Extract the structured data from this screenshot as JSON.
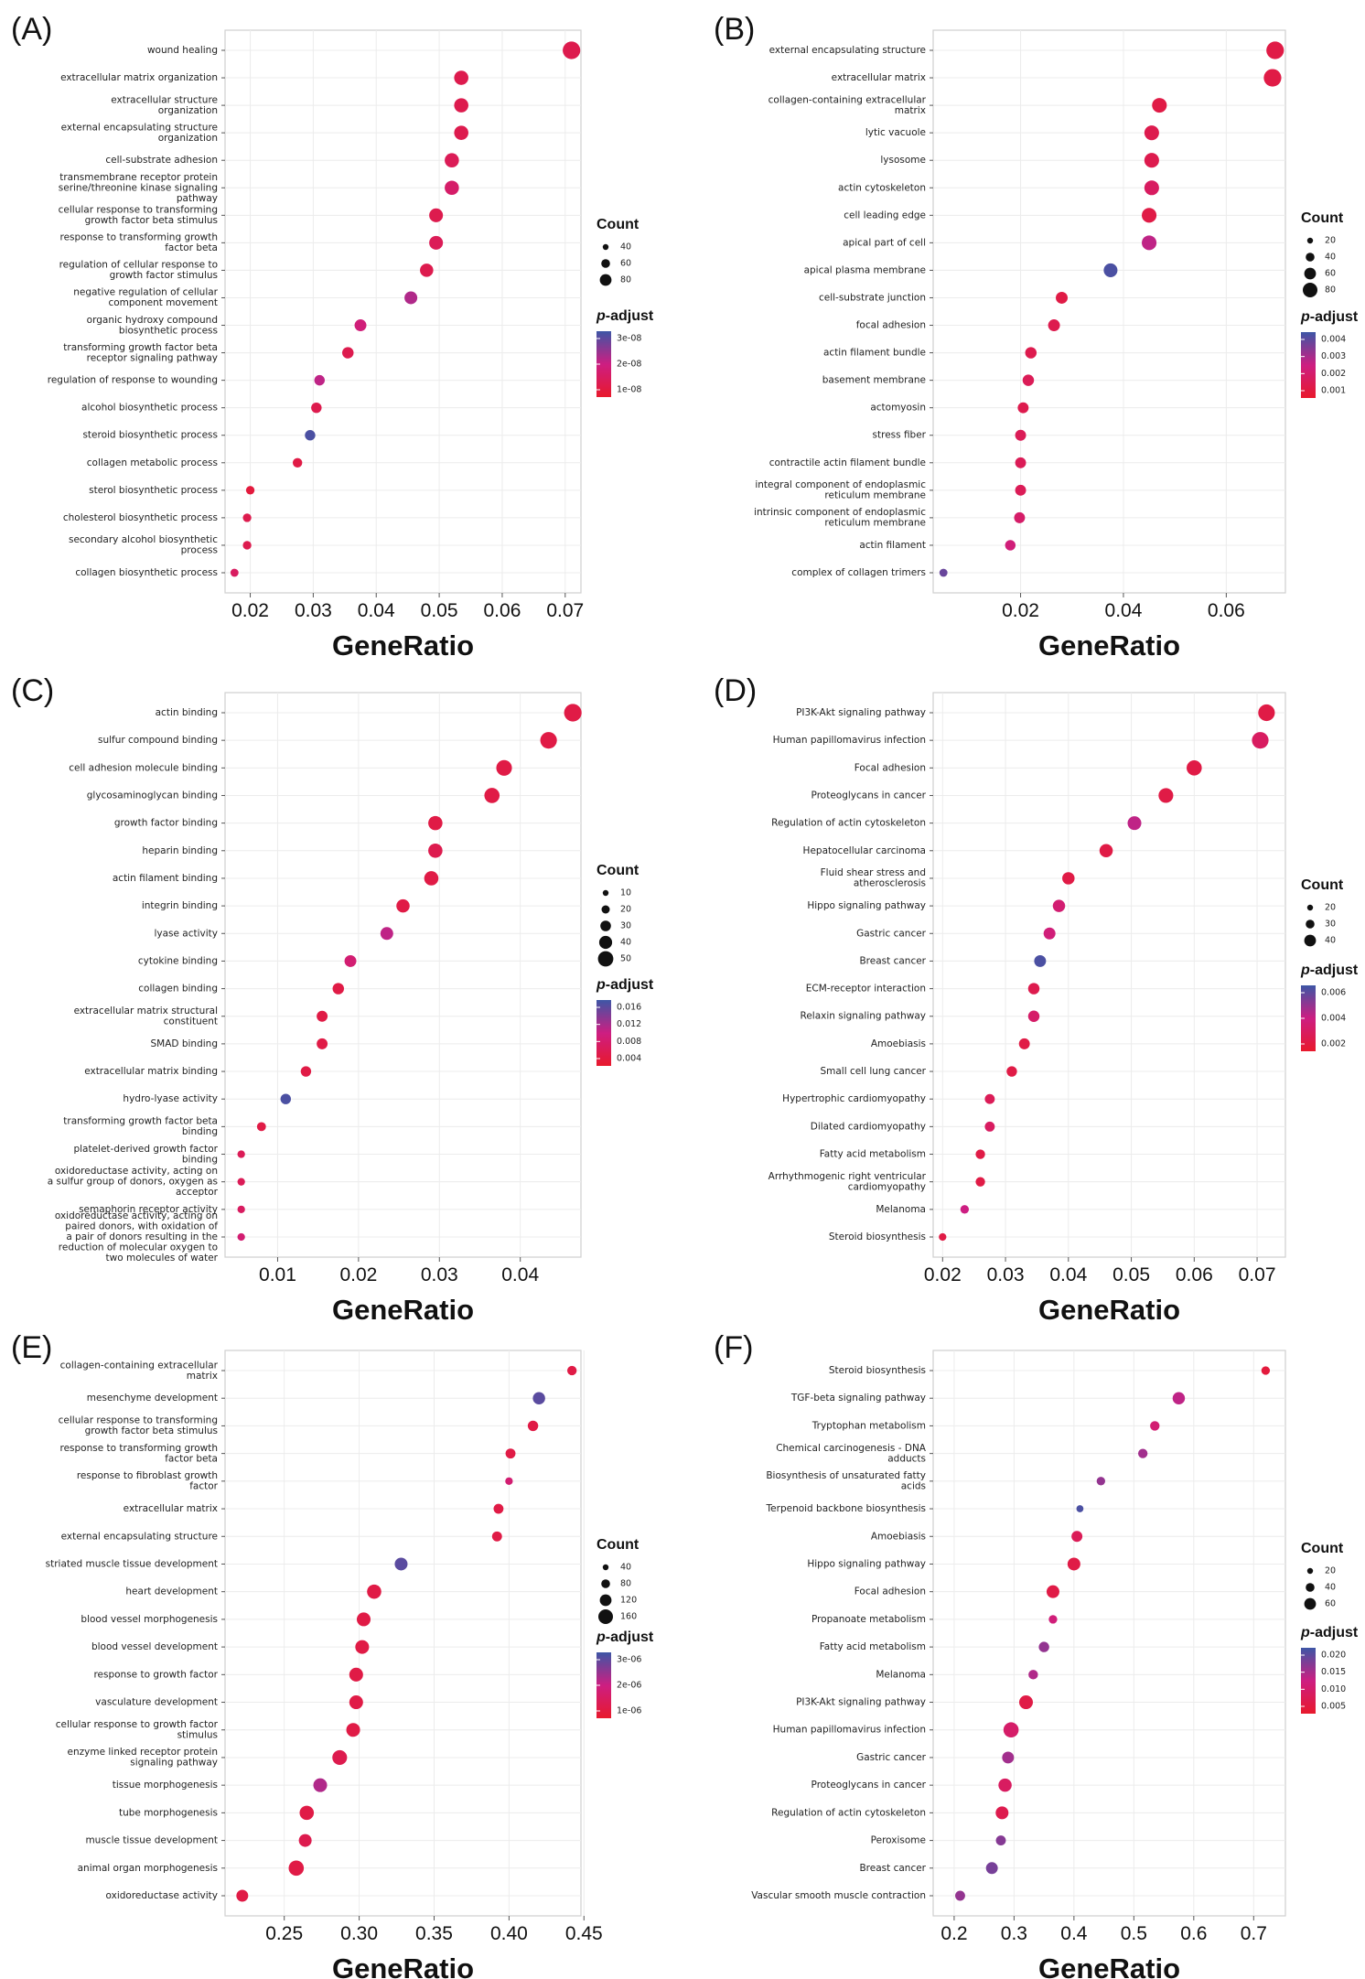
{
  "chart_data": [
    {
      "type": "scatter",
      "panel_label": "(A)",
      "xlabel": "GeneRatio",
      "xlim": [
        0.016,
        0.0725
      ],
      "xticks": [
        "0.02",
        "0.03",
        "0.04",
        "0.05",
        "0.06",
        "0.07"
      ],
      "legend_count_title": "Count",
      "legend_count_labels": [
        "40",
        "60",
        "80"
      ],
      "legend_padj_title": "p-adjust",
      "legend_padj_labels": [
        "3e-08",
        "2e-08",
        "1e-08"
      ],
      "categories": [
        "wound healing",
        "extracellular matrix organization",
        "extracellular structure\norganization",
        "external encapsulating structure\norganization",
        "cell-substrate adhesion",
        "transmembrane receptor protein\nserine/threonine kinase signaling\npathway",
        "cellular response to transforming\ngrowth factor beta stimulus",
        "response to transforming growth\nfactor beta",
        "regulation of cellular response to\ngrowth factor stimulus",
        "negative regulation of cellular\ncomponent movement",
        "organic hydroxy compound\nbiosynthetic process",
        "transforming growth factor beta\nreceptor signaling pathway",
        "regulation of response to wounding",
        "alcohol biosynthetic process",
        "steroid biosynthetic process",
        "collagen metabolic process",
        "sterol biosynthetic process",
        "cholesterol biosynthetic process",
        "secondary alcohol biosynthetic\nprocess",
        "collagen biosynthetic process"
      ],
      "x": [
        0.071,
        0.0535,
        0.0535,
        0.0535,
        0.052,
        0.052,
        0.0495,
        0.0495,
        0.048,
        0.0455,
        0.0375,
        0.0355,
        0.031,
        0.0305,
        0.0295,
        0.0275,
        0.02,
        0.0195,
        0.0195,
        0.0175
      ],
      "p": [
        0.2,
        0.2,
        0.2,
        0.2,
        0.25,
        0.35,
        0.2,
        0.25,
        0.2,
        0.6,
        0.45,
        0.2,
        0.55,
        0.2,
        0.95,
        0.15,
        0.1,
        0.2,
        0.2,
        0.3
      ],
      "size": [
        3,
        2.3,
        2.3,
        2.3,
        2.3,
        2.3,
        2.2,
        2.2,
        2.1,
        2.0,
        1.8,
        1.7,
        1.5,
        1.5,
        1.5,
        1.3,
        1.1,
        1.1,
        1.1,
        1.0
      ]
    },
    {
      "type": "scatter",
      "panel_label": "(B)",
      "xlabel": "GeneRatio",
      "xlim": [
        0.003,
        0.0715
      ],
      "xticks": [
        "0.02",
        "0.04",
        "0.06"
      ],
      "legend_count_title": "Count",
      "legend_count_labels": [
        "20",
        "40",
        "60",
        "80"
      ],
      "legend_padj_title": "p-adjust",
      "legend_padj_labels": [
        "0.004",
        "0.003",
        "0.002",
        "0.001"
      ],
      "categories": [
        "external encapsulating structure",
        "extracellular matrix",
        "collagen-containing extracellular\nmatrix",
        "lytic vacuole",
        "lysosome",
        "actin cytoskeleton",
        "cell leading edge",
        "apical part of cell",
        "apical plasma membrane",
        "cell-substrate junction",
        "focal adhesion",
        "actin filament bundle",
        "basement membrane",
        "actomyosin",
        "stress fiber",
        "contractile actin filament bundle",
        "integral component of endoplasmic\nreticulum membrane",
        "intrinsic component of endoplasmic\nreticulum membrane",
        "actin filament",
        "complex of collagen trimers"
      ],
      "x": [
        0.0695,
        0.069,
        0.047,
        0.0455,
        0.0455,
        0.0455,
        0.045,
        0.045,
        0.0375,
        0.028,
        0.0265,
        0.022,
        0.0215,
        0.0205,
        0.02,
        0.02,
        0.02,
        0.0198,
        0.018,
        0.005
      ],
      "p": [
        0.15,
        0.15,
        0.15,
        0.2,
        0.2,
        0.3,
        0.15,
        0.55,
        0.95,
        0.15,
        0.2,
        0.2,
        0.25,
        0.2,
        0.25,
        0.25,
        0.25,
        0.35,
        0.45,
        0.85
      ],
      "size": [
        3,
        3,
        2.4,
        2.4,
        2.4,
        2.4,
        2.4,
        2.4,
        2.2,
        1.8,
        1.8,
        1.7,
        1.7,
        1.6,
        1.6,
        1.6,
        1.6,
        1.6,
        1.5,
        1.0
      ]
    },
    {
      "type": "scatter",
      "panel_label": "(C)",
      "xlabel": "GeneRatio",
      "xlim": [
        0.0035,
        0.0475
      ],
      "xticks": [
        "0.01",
        "0.02",
        "0.03",
        "0.04"
      ],
      "legend_count_title": "Count",
      "legend_count_labels": [
        "10",
        "20",
        "30",
        "40",
        "50"
      ],
      "legend_padj_title": "p-adjust",
      "legend_padj_labels": [
        "0.016",
        "0.012",
        "0.008",
        "0.004"
      ],
      "categories": [
        "actin binding",
        "sulfur compound binding",
        "cell adhesion molecule binding",
        "glycosaminoglycan binding",
        "growth factor binding",
        "heparin binding",
        "actin filament binding",
        "integrin binding",
        "lyase activity",
        "cytokine binding",
        "collagen binding",
        "extracellular matrix structural\nconstituent",
        "SMAD binding",
        "extracellular matrix binding",
        "hydro-lyase activity",
        "transforming growth factor beta\nbinding",
        "platelet-derived growth factor\nbinding",
        "oxidoreductase activity, acting on\na sulfur group of donors, oxygen as\nacceptor",
        "semaphorin receptor activity",
        "oxidoreductase activity, acting on\npaired donors, with oxidation of\na pair of donors resulting in the\nreduction of molecular oxygen to\ntwo molecules of water"
      ],
      "x": [
        0.0465,
        0.0435,
        0.038,
        0.0365,
        0.0295,
        0.0295,
        0.029,
        0.0255,
        0.0235,
        0.019,
        0.0175,
        0.0155,
        0.0155,
        0.0135,
        0.011,
        0.008,
        0.0055,
        0.0055,
        0.0055,
        0.0055
      ],
      "p": [
        0.15,
        0.15,
        0.15,
        0.15,
        0.15,
        0.2,
        0.15,
        0.15,
        0.55,
        0.4,
        0.15,
        0.15,
        0.15,
        0.15,
        0.95,
        0.15,
        0.25,
        0.25,
        0.3,
        0.4
      ],
      "size": [
        3,
        2.8,
        2.6,
        2.5,
        2.3,
        2.3,
        2.3,
        2.1,
        2.0,
        1.8,
        1.7,
        1.6,
        1.6,
        1.5,
        1.5,
        1.2,
        0.9,
        0.9,
        0.9,
        0.9
      ]
    },
    {
      "type": "scatter",
      "panel_label": "(D)",
      "xlabel": "GeneRatio",
      "xlim": [
        0.0185,
        0.0745
      ],
      "xticks": [
        "0.02",
        "0.03",
        "0.04",
        "0.05",
        "0.06",
        "0.07"
      ],
      "legend_count_title": "Count",
      "legend_count_labels": [
        "20",
        "30",
        "40"
      ],
      "legend_padj_title": "p-adjust",
      "legend_padj_labels": [
        "0.006",
        "0.004",
        "0.002"
      ],
      "categories": [
        "PI3K-Akt signaling pathway",
        "Human papillomavirus infection",
        "Focal adhesion",
        "Proteoglycans in cancer",
        "Regulation of actin cytoskeleton",
        "Hepatocellular carcinoma",
        "Fluid shear stress and\natherosclerosis",
        "Hippo signaling pathway",
        "Gastric cancer",
        "Breast cancer",
        "ECM-receptor interaction",
        "Relaxin signaling pathway",
        "Amoebiasis",
        "Small cell lung cancer",
        "Hypertrophic cardiomyopathy",
        "Dilated cardiomyopathy",
        "Fatty acid metabolism",
        "Arrhythmogenic right ventricular\ncardiomyopathy",
        "Melanoma",
        "Steroid biosynthesis"
      ],
      "x": [
        0.0715,
        0.0705,
        0.06,
        0.0555,
        0.0505,
        0.046,
        0.04,
        0.0385,
        0.037,
        0.0355,
        0.0345,
        0.0345,
        0.033,
        0.031,
        0.0275,
        0.0275,
        0.026,
        0.026,
        0.0235,
        0.02
      ],
      "p": [
        0.15,
        0.3,
        0.15,
        0.15,
        0.55,
        0.15,
        0.15,
        0.4,
        0.45,
        0.95,
        0.2,
        0.35,
        0.15,
        0.15,
        0.25,
        0.3,
        0.15,
        0.15,
        0.5,
        0.15
      ],
      "size": [
        2.8,
        2.8,
        2.5,
        2.4,
        2.2,
        2.1,
        1.9,
        1.9,
        1.8,
        1.8,
        1.7,
        1.7,
        1.6,
        1.5,
        1.4,
        1.4,
        1.3,
        1.3,
        1.1,
        0.9
      ]
    },
    {
      "type": "scatter",
      "panel_label": "(E)",
      "xlabel": "GeneRatio",
      "xlim": [
        0.2105,
        0.448
      ],
      "xticks": [
        "0.25",
        "0.30",
        "0.35",
        "0.40",
        "0.45"
      ],
      "legend_count_title": "Count",
      "legend_count_labels": [
        "40",
        "80",
        "120",
        "160"
      ],
      "legend_padj_title": "p-adjust",
      "legend_padj_labels": [
        "3e-06",
        "2e-06",
        "1e-06"
      ],
      "categories": [
        "collagen-containing extracellular\nmatrix",
        "mesenchyme development",
        "cellular response to transforming\ngrowth factor beta stimulus",
        "response to transforming growth\nfactor beta",
        "response to fibroblast growth\nfactor",
        "extracellular matrix",
        "external encapsulating structure",
        "striated muscle tissue development",
        "heart development",
        "blood vessel morphogenesis",
        "blood vessel development",
        "response to growth factor",
        "vasculature development",
        "cellular response to growth factor\nstimulus",
        "enzyme linked receptor protein\nsignaling pathway",
        "tissue morphogenesis",
        "tube morphogenesis",
        "muscle tissue development",
        "animal organ morphogenesis",
        "oxidoreductase activity"
      ],
      "x": [
        0.442,
        0.42,
        0.416,
        0.401,
        0.4,
        0.393,
        0.392,
        0.328,
        0.31,
        0.303,
        0.302,
        0.298,
        0.298,
        0.296,
        0.287,
        0.274,
        0.265,
        0.264,
        0.258,
        0.222
      ],
      "p": [
        0.15,
        0.9,
        0.15,
        0.15,
        0.4,
        0.15,
        0.15,
        0.9,
        0.15,
        0.15,
        0.15,
        0.15,
        0.15,
        0.15,
        0.2,
        0.6,
        0.15,
        0.2,
        0.15,
        0.15
      ],
      "size": [
        1.3,
        1.9,
        1.5,
        1.4,
        0.9,
        1.4,
        1.4,
        2.0,
        2.3,
        2.2,
        2.2,
        2.2,
        2.2,
        2.2,
        2.4,
        2.2,
        2.3,
        2.0,
        2.5,
        1.8
      ]
    },
    {
      "type": "scatter",
      "panel_label": "(F)",
      "xlabel": "GeneRatio",
      "xlim": [
        0.165,
        0.753
      ],
      "xticks": [
        "0.2",
        "0.3",
        "0.4",
        "0.5",
        "0.6",
        "0.7"
      ],
      "legend_count_title": "Count",
      "legend_count_labels": [
        "20",
        "40",
        "60"
      ],
      "legend_padj_title": "p-adjust",
      "legend_padj_labels": [
        "0.020",
        "0.015",
        "0.010",
        "0.005"
      ],
      "categories": [
        "Steroid biosynthesis",
        "TGF-beta signaling pathway",
        "Tryptophan metabolism",
        "Chemical carcinogenesis - DNA\nadducts",
        "Biosynthesis of unsaturated fatty\nacids",
        "Terpenoid backbone biosynthesis",
        "Amoebiasis",
        "Hippo signaling pathway",
        "Focal adhesion",
        "Propanoate metabolism",
        "Fatty acid metabolism",
        "Melanoma",
        "PI3K-Akt signaling pathway",
        "Human papillomavirus infection",
        "Gastric cancer",
        "Proteoglycans in cancer",
        "Regulation of actin cytoskeleton",
        "Peroxisome",
        "Breast cancer",
        "Vascular smooth muscle contraction"
      ],
      "x": [
        0.72,
        0.575,
        0.535,
        0.515,
        0.445,
        0.41,
        0.405,
        0.4,
        0.365,
        0.365,
        0.35,
        0.332,
        0.32,
        0.295,
        0.29,
        0.285,
        0.28,
        0.278,
        0.263,
        0.21
      ],
      "p": [
        0.1,
        0.55,
        0.4,
        0.65,
        0.7,
        0.95,
        0.25,
        0.15,
        0.15,
        0.45,
        0.7,
        0.6,
        0.15,
        0.35,
        0.65,
        0.3,
        0.2,
        0.75,
        0.8,
        0.7
      ],
      "size": [
        1.1,
        1.9,
        1.3,
        1.3,
        1.1,
        0.8,
        1.6,
        2.0,
        2.0,
        1.1,
        1.5,
        1.3,
        2.2,
        2.5,
        1.8,
        2.1,
        2.0,
        1.4,
        1.8,
        1.4
      ]
    }
  ]
}
